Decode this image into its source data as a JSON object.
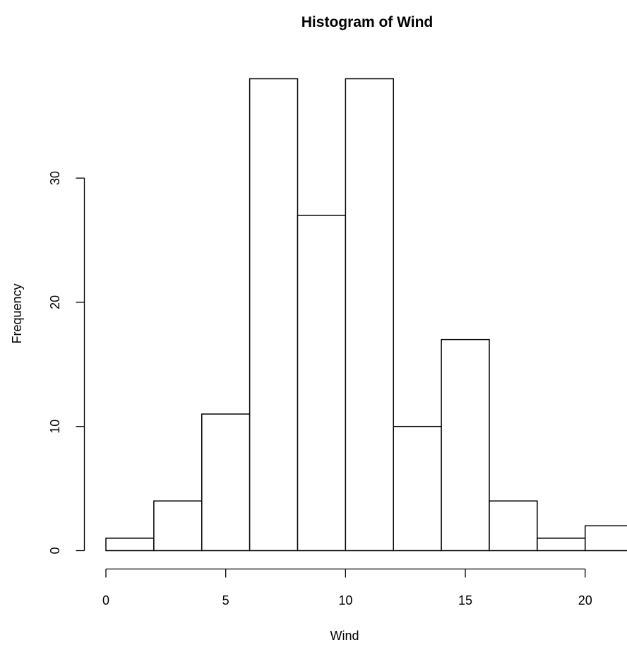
{
  "chart_data": {
    "type": "bar",
    "title": "Histogram of Wind",
    "xlabel": "Wind",
    "ylabel": "Frequency",
    "bins": [
      {
        "x0": 0,
        "x1": 2,
        "count": 1
      },
      {
        "x0": 2,
        "x1": 4,
        "count": 4
      },
      {
        "x0": 4,
        "x1": 6,
        "count": 11
      },
      {
        "x0": 6,
        "x1": 8,
        "count": 38
      },
      {
        "x0": 8,
        "x1": 10,
        "count": 27
      },
      {
        "x0": 10,
        "x1": 12,
        "count": 38
      },
      {
        "x0": 12,
        "x1": 14,
        "count": 10
      },
      {
        "x0": 14,
        "x1": 16,
        "count": 17
      },
      {
        "x0": 16,
        "x1": 18,
        "count": 4
      },
      {
        "x0": 18,
        "x1": 20,
        "count": 1
      },
      {
        "x0": 20,
        "x1": 22,
        "count": 2
      }
    ],
    "x_ticks": [
      0,
      5,
      10,
      15,
      20
    ],
    "x_tick_labels": [
      "0",
      "5",
      "10",
      "15",
      "20"
    ],
    "y_ticks": [
      0,
      10,
      20,
      30
    ],
    "y_tick_labels": [
      "0",
      "10",
      "20",
      "30"
    ],
    "xlim": [
      0,
      22
    ],
    "ylim": [
      0,
      38
    ],
    "grid": false,
    "legend": "none",
    "bar_fill": "#ffffff",
    "bar_stroke": "#000000"
  }
}
